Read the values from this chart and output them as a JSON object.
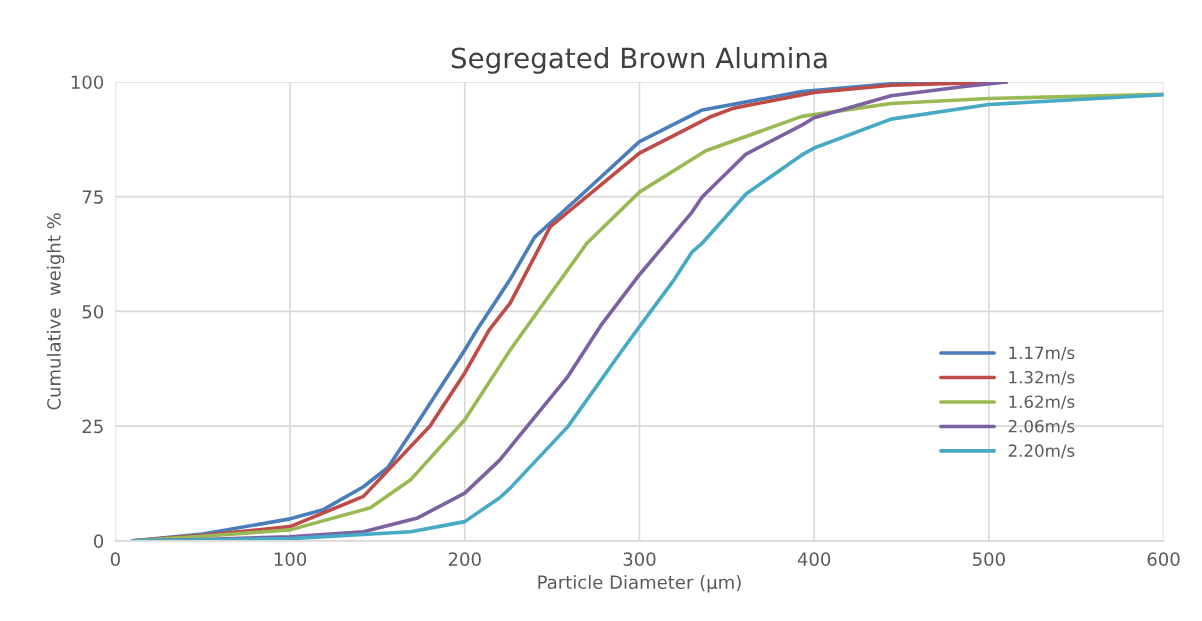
{
  "chart_data": {
    "type": "line",
    "title": "Segregated Brown Alumina",
    "xlabel": "Particle Diameter (µm)",
    "ylabel": "Cumulative  weight %",
    "xlim": [
      0,
      600
    ],
    "xticks": [
      0,
      100,
      200,
      300,
      400,
      500,
      600
    ],
    "ylim": [
      0,
      100
    ],
    "yticks": [
      0,
      25,
      50,
      75,
      100
    ],
    "grid": true,
    "legend": "right",
    "marker": "none",
    "line_style": "solid",
    "series": [
      {
        "name": "1.17m/s",
        "color": "#4a7ebb",
        "x": [
          10,
          50,
          100,
          119,
          142,
          156,
          171,
          200,
          207,
          226,
          240,
          268,
          300,
          336,
          393,
          444,
          510
        ],
        "values": [
          0,
          1.5,
          4.8,
          6.8,
          11.8,
          16,
          24.6,
          41.6,
          46,
          57,
          66.2,
          75.8,
          87,
          93.9,
          97.9,
          99.6,
          100
        ]
      },
      {
        "name": "1.32m/s",
        "color": "#be4b48",
        "x": [
          10,
          50,
          100,
          142,
          180,
          200,
          214,
          226,
          249,
          300,
          340,
          354,
          400,
          444,
          510
        ],
        "values": [
          0,
          1.2,
          3.1,
          9.7,
          25,
          36.6,
          46,
          51.8,
          68.5,
          84.5,
          92.3,
          94.3,
          97.7,
          99.3,
          100
        ]
      },
      {
        "name": "1.62m/s",
        "color": "#98b954",
        "x": [
          10,
          50,
          100,
          146,
          169,
          200,
          226,
          235,
          270,
          300,
          338,
          393,
          444,
          500,
          600
        ],
        "values": [
          0,
          1,
          2.4,
          7.2,
          13.3,
          26.4,
          41.6,
          46.4,
          64.9,
          76,
          85,
          92.5,
          95.3,
          96.4,
          97.3
        ]
      },
      {
        "name": "2.06m/s",
        "color": "#7d60a0",
        "x": [
          10,
          50,
          100,
          142,
          173,
          200,
          220,
          259,
          278,
          300,
          330,
          336,
          361,
          393,
          400,
          444,
          486,
          510
        ],
        "values": [
          0,
          0.3,
          0.9,
          2,
          5,
          10.4,
          17.6,
          35.8,
          47,
          58,
          71.6,
          75,
          84.3,
          90.6,
          92.2,
          97,
          99,
          100
        ]
      },
      {
        "name": "2.20m/s",
        "color": "#46aac5",
        "x": [
          10,
          50,
          100,
          169,
          200,
          220,
          226,
          259,
          290,
          300,
          320,
          330,
          336,
          361,
          393,
          400,
          444,
          500,
          600
        ],
        "values": [
          0,
          0.2,
          0.5,
          2,
          4.2,
          9.4,
          11.5,
          24.9,
          41.5,
          46.7,
          57,
          62.9,
          64.9,
          75.6,
          84.1,
          85.6,
          91.9,
          95.1,
          97.2
        ]
      }
    ]
  }
}
